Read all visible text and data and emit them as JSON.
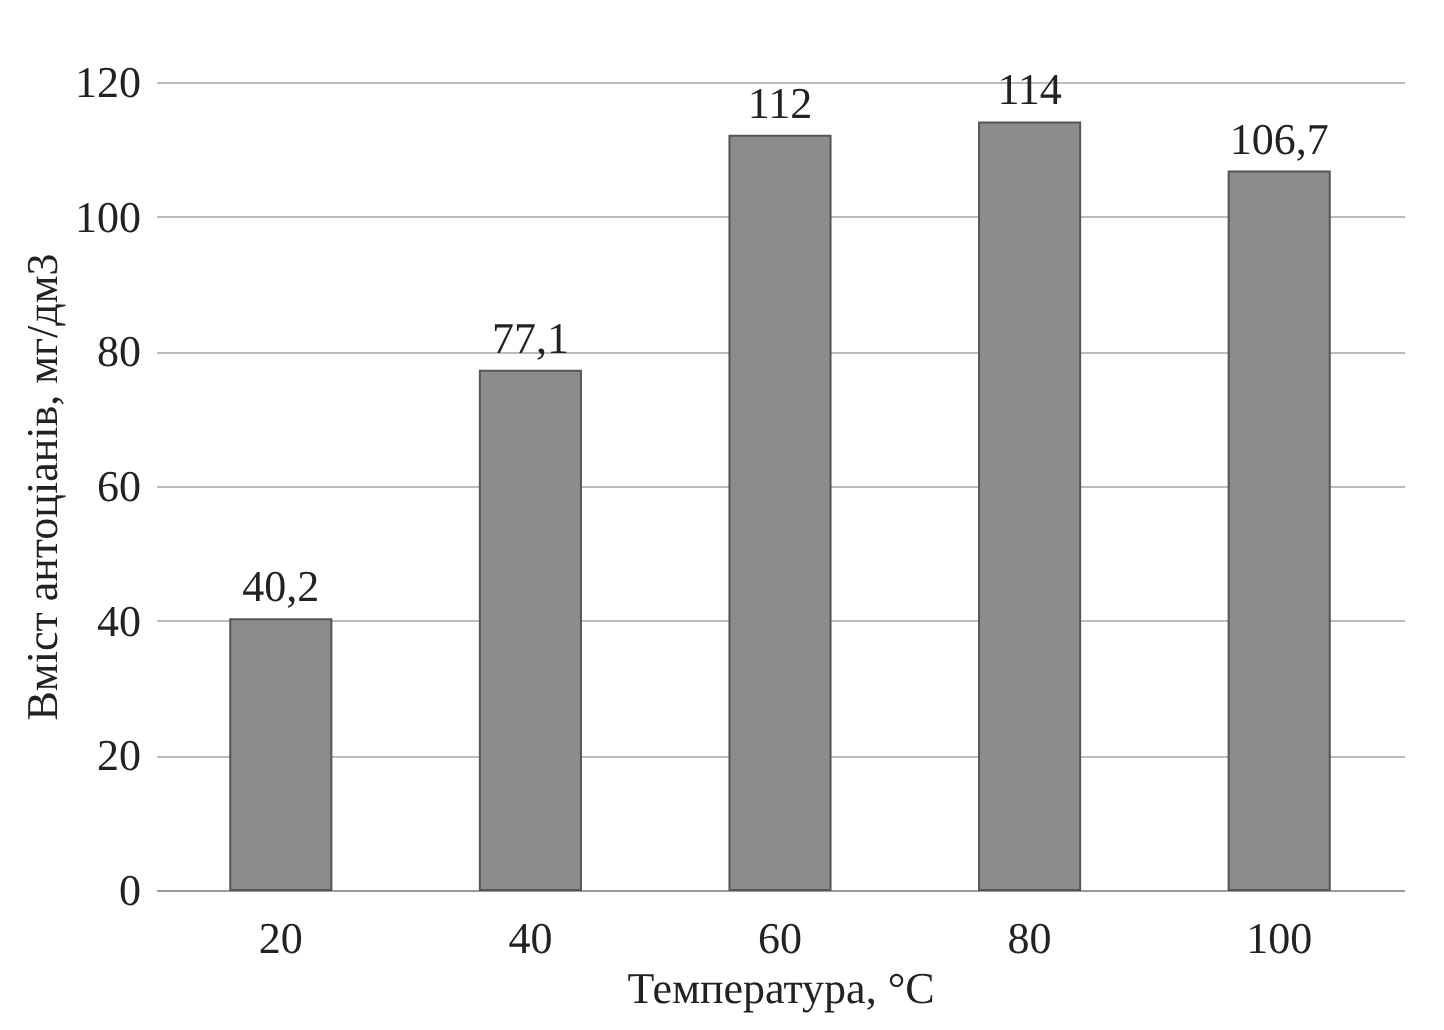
{
  "chart_data": {
    "type": "bar",
    "xlabel": "Температура, °C",
    "ylabel": "Вміст антоціанів, мг/дм3",
    "categories": [
      "20",
      "40",
      "60",
      "80",
      "100"
    ],
    "values": [
      40.2,
      77.1,
      112,
      114,
      106.7
    ],
    "value_labels": [
      "40,2",
      "77,1",
      "112",
      "114",
      "106,7"
    ],
    "color": "#8c8c8c",
    "ylim": [
      0,
      120
    ],
    "yticks": [
      0,
      20,
      40,
      60,
      80,
      100,
      120
    ],
    "grid": "y"
  }
}
